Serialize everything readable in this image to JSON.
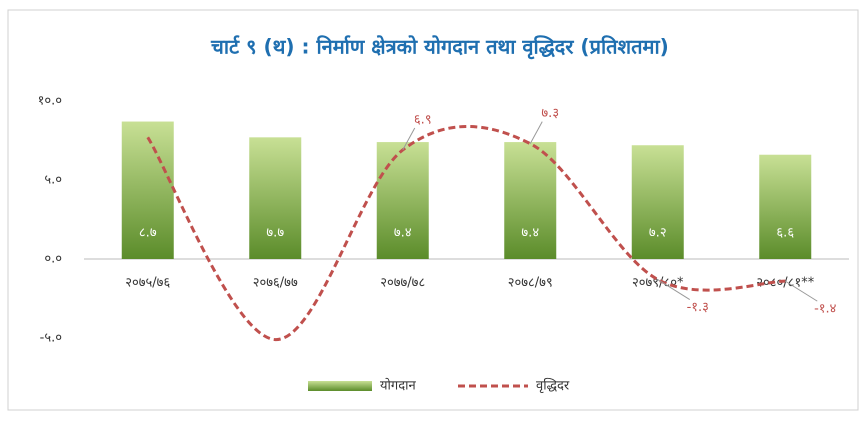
{
  "chart_data": {
    "type": "bar_line",
    "title": "चार्ट ९ (थ) : निर्माण क्षेत्रको योगदान तथा वृद्धिदर (प्रतिशतमा)",
    "categories": [
      "२०७५/७६",
      "२०७६/७७",
      "२०७७/७८",
      "२०७८/७९",
      "२०७९/८०*",
      "२०८०/८१**"
    ],
    "series": [
      {
        "name": "योगदान",
        "type": "bar",
        "color": "#7aa83a",
        "values": [
          8.7,
          7.7,
          7.4,
          7.4,
          7.2,
          6.6
        ],
        "value_labels": [
          "८.७",
          "७.७",
          "७.४",
          "७.४",
          "७.२",
          "६.६"
        ]
      },
      {
        "name": "वृद्धिदर",
        "type": "line",
        "color": "#c0504d",
        "values": [
          7.7,
          -5.1,
          6.9,
          7.3,
          -1.3,
          -1.4
        ],
        "value_labels": [
          null,
          null,
          "६.९",
          "७.३",
          "-१.३",
          "-१.४"
        ]
      }
    ],
    "ylim": [
      -5,
      10
    ],
    "yticks": [
      {
        "value": 10,
        "label": "१०.०"
      },
      {
        "value": 5,
        "label": "५.०"
      },
      {
        "value": 0,
        "label": "०.०"
      },
      {
        "value": -5,
        "label": "-५.०"
      }
    ],
    "legend": "bottom"
  }
}
